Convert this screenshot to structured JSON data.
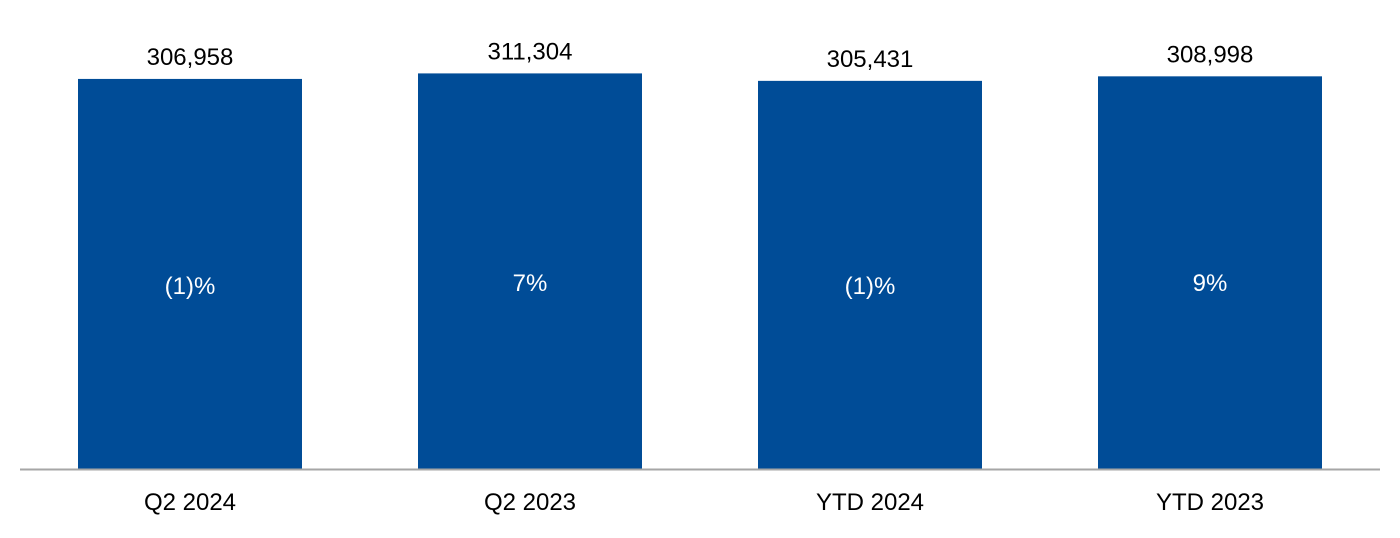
{
  "chart_data": {
    "type": "bar",
    "categories": [
      "Q2 2024",
      "Q2 2023",
      "YTD 2024",
      "YTD 2023"
    ],
    "values": [
      306958,
      311304,
      305431,
      308998
    ],
    "value_labels": [
      "306,958",
      "311,304",
      "305,431",
      "308,998"
    ],
    "change_labels": [
      "(1)%",
      "7%",
      "(1)%",
      "9%"
    ],
    "title": "",
    "xlabel": "",
    "ylabel": "",
    "ylim": [
      0,
      325000
    ],
    "grid": false,
    "legend": "none",
    "colors": {
      "bar": "#004C97",
      "axis": "#A6A6A6",
      "inner_text": "#FFFFFF",
      "text": "#000000"
    }
  }
}
